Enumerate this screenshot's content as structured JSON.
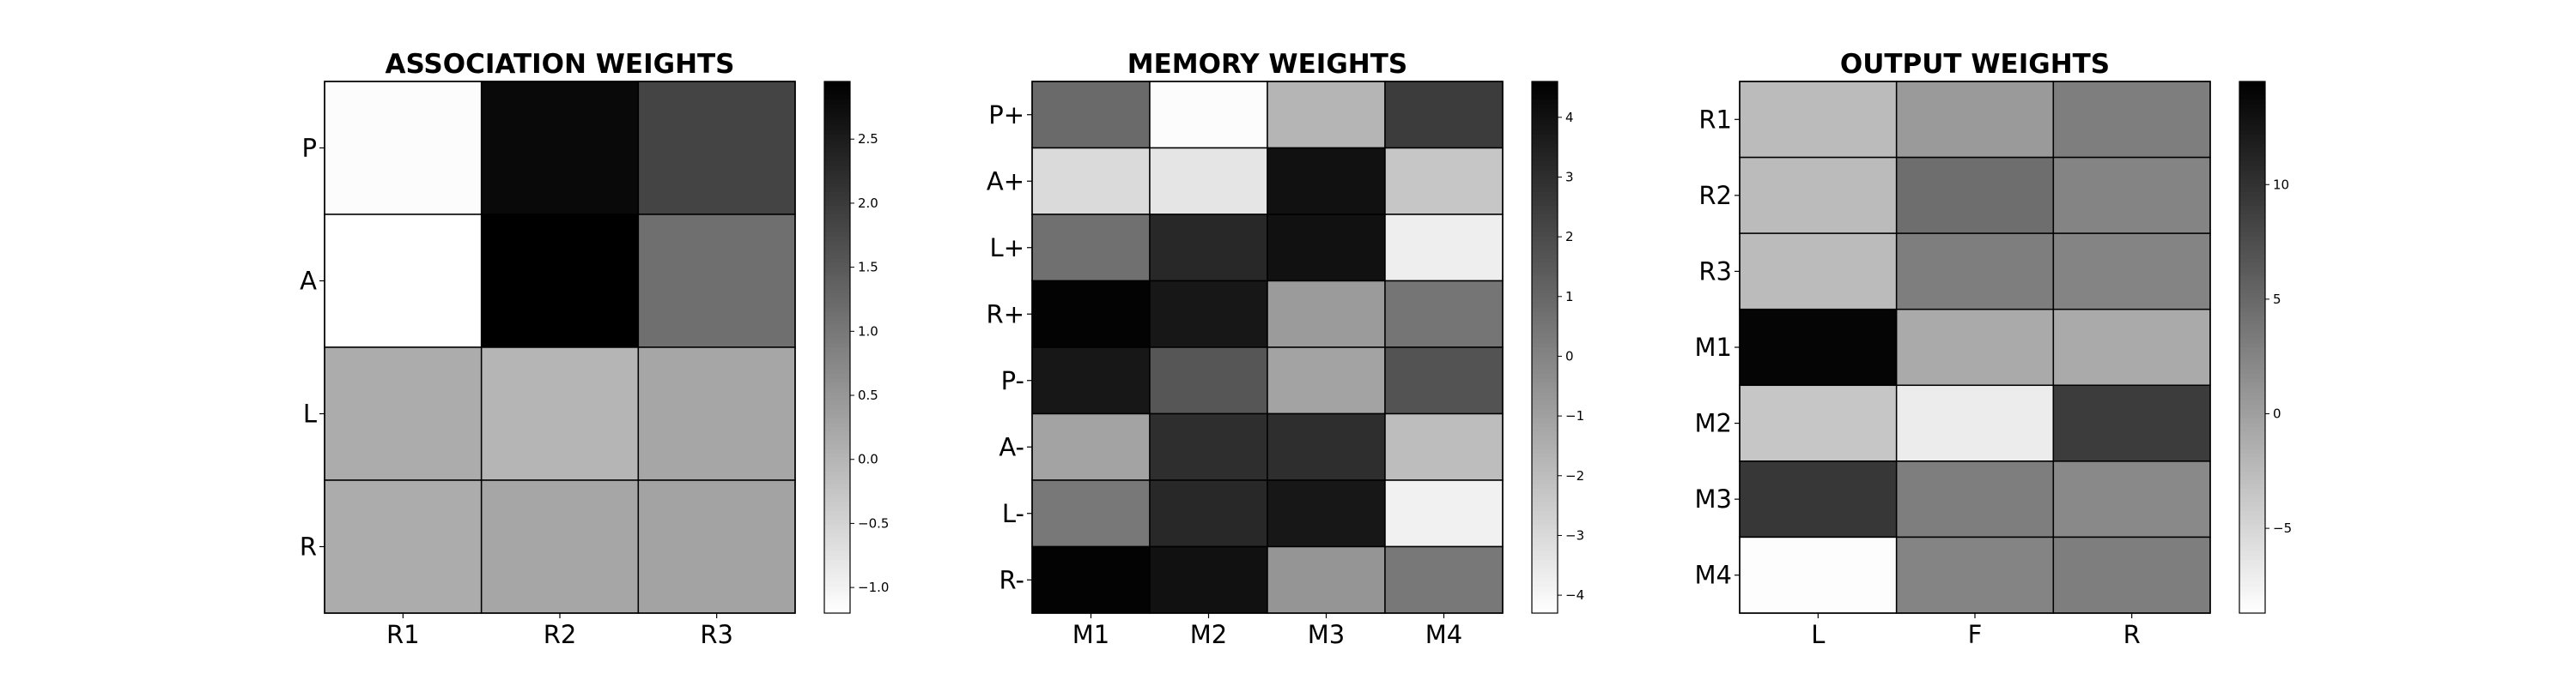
{
  "chart_data": [
    {
      "type": "heatmap",
      "title": "ASSOCIATION WEIGHTS",
      "row_labels": [
        "P",
        "A",
        "L",
        "R"
      ],
      "col_labels": [
        "R1",
        "R2",
        "R3"
      ],
      "values": [
        [
          -1.15,
          2.8,
          1.85
        ],
        [
          -1.2,
          2.95,
          1.15
        ],
        [
          0.15,
          0.0,
          0.25
        ],
        [
          0.15,
          0.25,
          0.3
        ]
      ],
      "colorbar": {
        "min": -1.2,
        "max": 2.95,
        "ticks": [
          "−1.0",
          "−0.5",
          "0.0",
          "0.5",
          "1.0",
          "1.5",
          "2.0",
          "2.5"
        ],
        "tick_values": [
          -1.0,
          -0.5,
          0.0,
          0.5,
          1.0,
          1.5,
          2.0,
          2.5
        ]
      },
      "colormap": "Greys"
    },
    {
      "type": "heatmap",
      "title": "MEMORY WEIGHTS",
      "row_labels": [
        "P+",
        "A+",
        "L+",
        "R+",
        "P-",
        "A-",
        "L-",
        "R-"
      ],
      "col_labels": [
        "M1",
        "M2",
        "M3",
        "M4"
      ],
      "values": [
        [
          0.9,
          -4.2,
          -1.7,
          2.5
        ],
        [
          -3.0,
          -3.4,
          4.0,
          -2.3
        ],
        [
          0.7,
          3.2,
          4.0,
          -3.7
        ],
        [
          4.5,
          3.8,
          -0.8,
          0.5
        ],
        [
          3.8,
          1.6,
          -1.1,
          1.7
        ],
        [
          -1.1,
          3.0,
          3.0,
          -2.0
        ],
        [
          0.4,
          3.2,
          3.8,
          -3.8
        ],
        [
          4.5,
          4.0,
          -0.6,
          0.4
        ]
      ],
      "colorbar": {
        "min": -4.3,
        "max": 4.6,
        "ticks": [
          "−4",
          "−3",
          "−2",
          "−1",
          "0",
          "1",
          "2",
          "3",
          "4"
        ],
        "tick_values": [
          -4,
          -3,
          -2,
          -1,
          0,
          1,
          2,
          3,
          4
        ]
      },
      "colormap": "Greys"
    },
    {
      "type": "heatmap",
      "title": "OUTPUT WEIGHTS",
      "row_labels": [
        "R1",
        "R2",
        "R3",
        "M1",
        "M2",
        "M3",
        "M4"
      ],
      "col_labels": [
        "L",
        "F",
        "R"
      ],
      "values": [
        [
          -2.5,
          0.5,
          3.0
        ],
        [
          -2.5,
          4.5,
          2.5
        ],
        [
          -2.5,
          3.0,
          2.5
        ],
        [
          14.0,
          -1.0,
          -1.0
        ],
        [
          -3.5,
          -7.0,
          9.0
        ],
        [
          9.5,
          3.0,
          2.0
        ],
        [
          -8.5,
          2.5,
          3.0
        ]
      ],
      "colorbar": {
        "min": -8.7,
        "max": 14.5,
        "ticks": [
          "−5",
          "0",
          "5",
          "10"
        ],
        "tick_values": [
          -5,
          0,
          5,
          10
        ]
      },
      "colormap": "Greys"
    }
  ]
}
